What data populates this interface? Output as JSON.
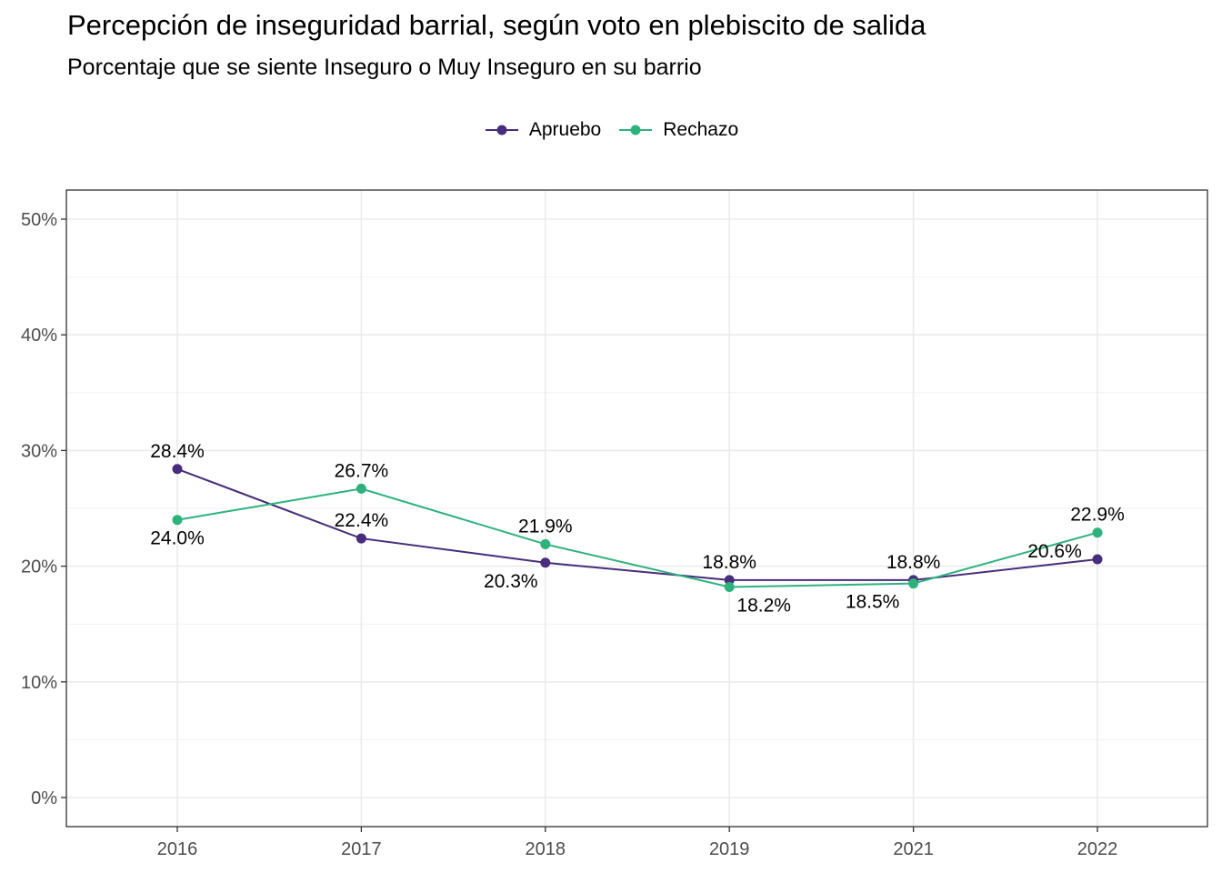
{
  "chart_data": {
    "type": "line",
    "title": "Percepción de inseguridad barrial, según voto en plebiscito de salida",
    "subtitle": "Porcentaje que se siente Inseguro o Muy Inseguro en su barrio",
    "xlabel": "",
    "ylabel": "",
    "categories": [
      "2016",
      "2017",
      "2018",
      "2019",
      "2021",
      "2022"
    ],
    "ylim": [
      0,
      50
    ],
    "yticks": [
      0,
      10,
      20,
      30,
      40,
      50
    ],
    "ytick_labels": [
      "0%",
      "10%",
      "20%",
      "30%",
      "40%",
      "50%"
    ],
    "grid": true,
    "legend_position": "top",
    "series": [
      {
        "name": "Apruebo",
        "color": "#472D7B",
        "values": [
          28.4,
          22.4,
          20.3,
          18.8,
          18.8,
          20.6
        ],
        "labels": [
          "28.4%",
          "22.4%",
          "20.3%",
          "18.8%",
          "18.8%",
          "20.6%"
        ]
      },
      {
        "name": "Rechazo",
        "color": "#2DB27D",
        "values": [
          24.0,
          26.7,
          21.9,
          18.2,
          18.5,
          22.9
        ],
        "labels": [
          "24.0%",
          "26.7%",
          "21.9%",
          "18.2%",
          "18.5%",
          "22.9%"
        ]
      }
    ]
  }
}
